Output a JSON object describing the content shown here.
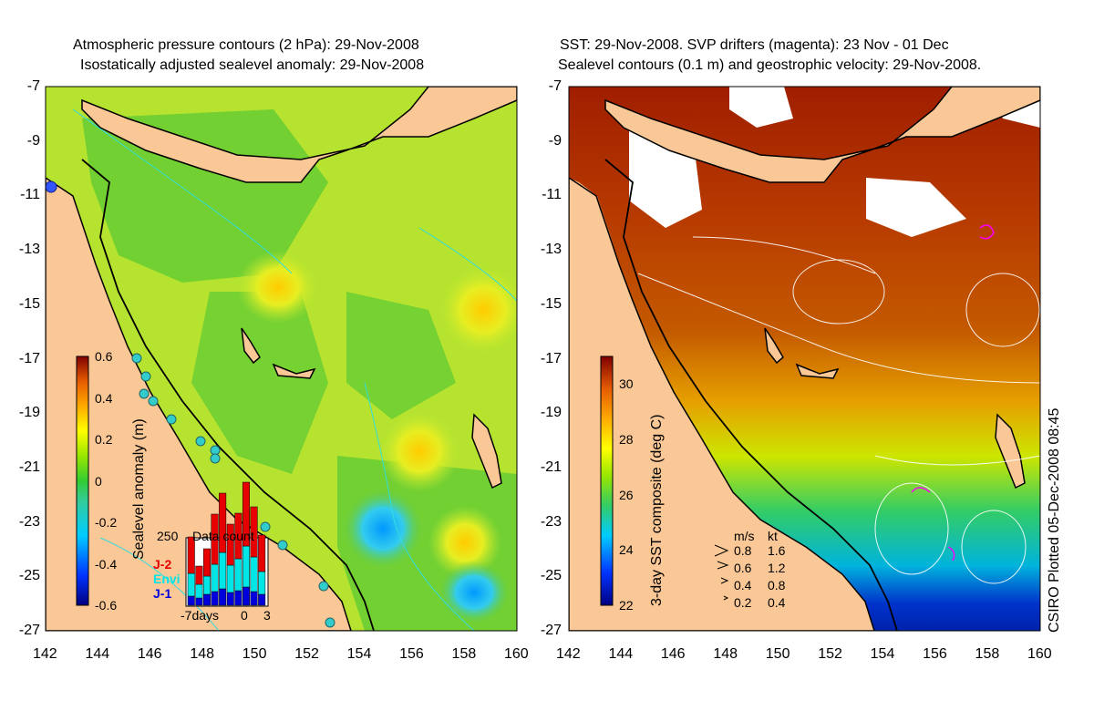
{
  "left_panel": {
    "title_line1": "Atmospheric pressure contours (2 hPa): 29-Nov-2008",
    "title_line2": "Isostatically adjusted sealevel anomaly: 29-Nov-2008",
    "colorbar_label": "Sealevel anomaly (m)",
    "colorbar_ticks": [
      "0.6",
      "0.4",
      "0.2",
      "0",
      "-0.2",
      "-0.4",
      "-0.6"
    ],
    "colorbar_range": [
      -0.6,
      0.6
    ],
    "inset": {
      "title": "Data count",
      "y_max_label": "250",
      "x_labels": [
        "-7days",
        "0",
        "3"
      ],
      "series": [
        {
          "name": "J-2",
          "color": "#e60000"
        },
        {
          "name": "Envi",
          "color": "#00e6e6"
        },
        {
          "name": "J-1",
          "color": "#0000dd"
        }
      ]
    }
  },
  "right_panel": {
    "title_line1": "SST: 29-Nov-2008. SVP drifters (magenta): 23 Nov - 01 Dec",
    "title_line2": "Sealevel contours (0.1 m) and geostrophic velocity: 29-Nov-2008.",
    "colorbar_label": "3-day SST composite (deg C)",
    "colorbar_ticks": [
      "30",
      "28",
      "26",
      "24",
      "22"
    ],
    "colorbar_range": [
      22,
      31
    ],
    "velocity_legend": {
      "header_ms": "m/s",
      "header_kt": "kt",
      "rows": [
        {
          "ms": "0.8",
          "kt": "1.6"
        },
        {
          "ms": "0.6",
          "kt": "1.2"
        },
        {
          "ms": "0.4",
          "kt": "0.8"
        },
        {
          "ms": "0.2",
          "kt": "0.4"
        }
      ]
    }
  },
  "y_ticks": [
    "-7",
    "-9",
    "-11",
    "-13",
    "-15",
    "-17",
    "-19",
    "-21",
    "-23",
    "-25",
    "-27"
  ],
  "x_ticks": [
    "142",
    "144",
    "146",
    "148",
    "150",
    "152",
    "154",
    "156",
    "158",
    "160"
  ],
  "credit": "CSIRO Plotted 05-Dec-2008 08:45",
  "colors": {
    "land": "#fac896",
    "sla_mid": "#66cc33",
    "sst_warm": "#a01e00"
  }
}
